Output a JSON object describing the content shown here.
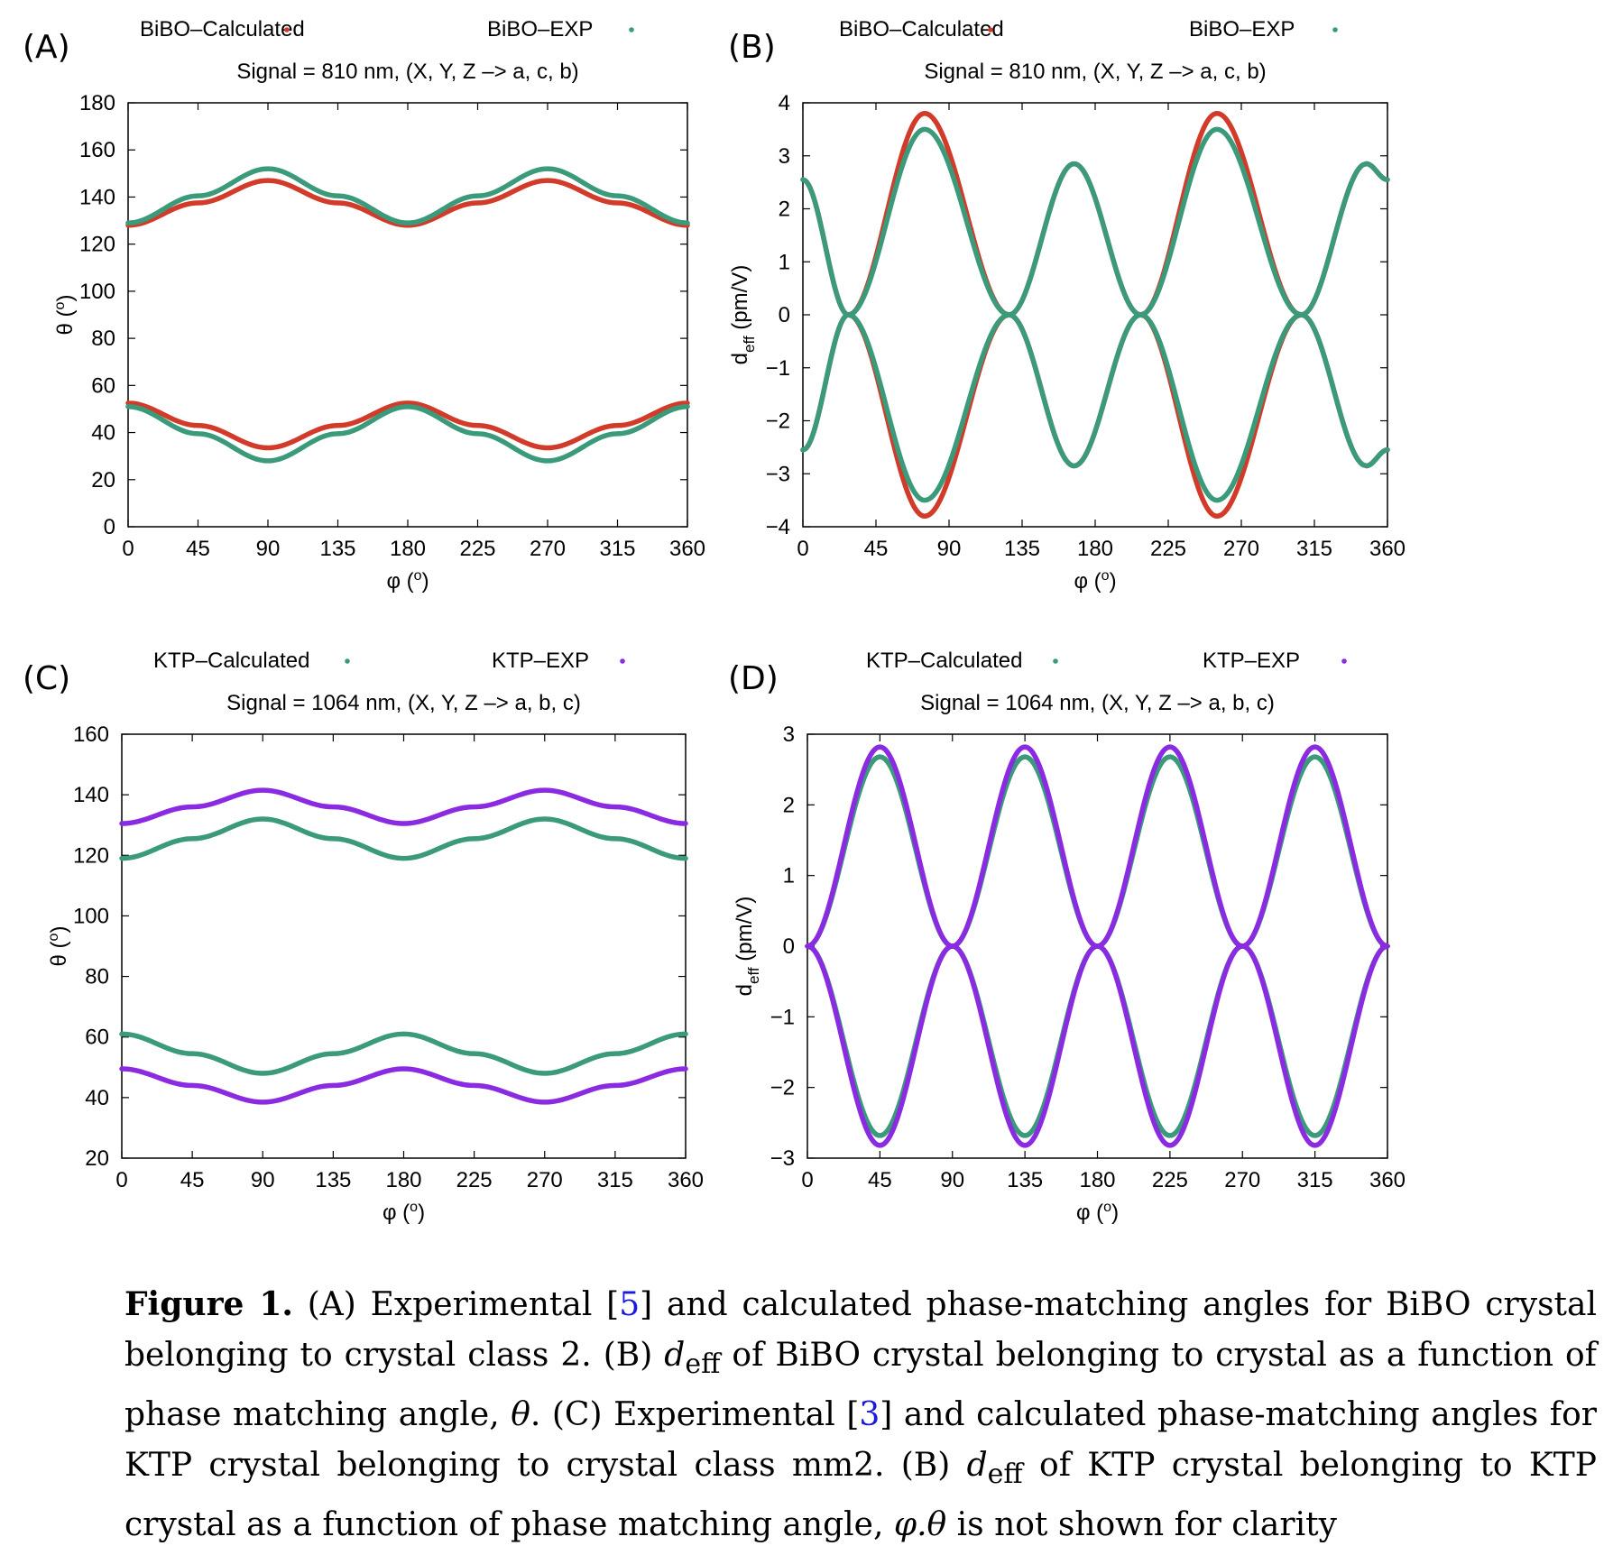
{
  "colors": {
    "bibo_calc": "#d23a2a",
    "bibo_exp": "#3a9a7a",
    "ktp_calc": "#3a9a7a",
    "ktp_exp": "#8a2be2"
  },
  "panels": {
    "a": {
      "letter": "(A)"
    },
    "b": {
      "letter": "(B)"
    },
    "c": {
      "letter": "(C)"
    },
    "d": {
      "letter": "(D)"
    }
  },
  "caption": {
    "fig_label": "Figure 1.",
    "s1": " (A) Experimental [",
    "ref1": "5",
    "s2": "] and calculated phase-matching angles for BiBO crystal belonging to crystal class 2. (B) ",
    "deff1": "d",
    "eff1": "eff",
    "s3": " of BiBO crystal belonging to crystal as a function of phase matching angle, ",
    "theta1": "θ",
    "s4": ". (C) Experimental [",
    "ref2": "3",
    "s5": "] and calculated phase-matching angles for KTP crystal belonging to crystal class mm2. (B) ",
    "deff2": "d",
    "eff2": "eff",
    "s6": " of KTP crystal belonging to KTP crystal as a function of phase matching angle, ",
    "phitheta": "φ.θ",
    "s7": " is not shown for clarity"
  },
  "chart_data": [
    {
      "id": "A",
      "type": "line",
      "title": "Signal = 810 nm, (X, Y, Z –> a, c, b)",
      "xlabel": "φ (o)",
      "ylabel": "θ (o)",
      "xlim": [
        0,
        360
      ],
      "ylim": [
        0,
        180
      ],
      "xticks": [
        0,
        45,
        90,
        135,
        180,
        225,
        270,
        315,
        360
      ],
      "yticks": [
        0,
        20,
        40,
        60,
        80,
        100,
        120,
        140,
        160,
        180
      ],
      "legend_position": "top",
      "series": [
        {
          "name": "BiBO–Calculated",
          "color_key": "bibo_calc",
          "x": [
            0,
            45,
            90,
            135,
            180,
            225,
            270,
            315,
            360
          ],
          "y": [
            128,
            137.5,
            147,
            137.5,
            128,
            137.5,
            147,
            137.5,
            128
          ]
        },
        {
          "name": "BiBO–Calculated",
          "color_key": "bibo_calc",
          "legend": false,
          "x": [
            0,
            45,
            90,
            135,
            180,
            225,
            270,
            315,
            360
          ],
          "y": [
            52.5,
            43,
            33.5,
            43,
            52.5,
            43,
            33.5,
            43,
            52.5
          ]
        },
        {
          "name": "BiBO–EXP",
          "color_key": "bibo_exp",
          "x": [
            0,
            45,
            90,
            135,
            180,
            225,
            270,
            315,
            360
          ],
          "y": [
            129,
            140.5,
            152,
            140.5,
            129,
            140.5,
            152,
            140.5,
            129
          ]
        },
        {
          "name": "BiBO–EXP",
          "color_key": "bibo_exp",
          "legend": false,
          "x": [
            0,
            45,
            90,
            135,
            180,
            225,
            270,
            315,
            360
          ],
          "y": [
            51,
            39.5,
            28,
            39.5,
            51,
            39.5,
            28,
            39.5,
            51
          ]
        }
      ]
    },
    {
      "id": "B",
      "type": "line",
      "title": "Signal = 810 nm, (X, Y, Z –> a, c, b)",
      "xlabel": "φ (o)",
      "ylabel": "deff (pm/V)",
      "xlim": [
        0,
        360
      ],
      "ylim": [
        -4,
        4
      ],
      "xticks": [
        0,
        45,
        90,
        135,
        180,
        225,
        270,
        315,
        360
      ],
      "yticks": [
        -4,
        -3,
        -2,
        -1,
        0,
        1,
        2,
        3,
        4
      ],
      "legend_position": "top",
      "series": [
        {
          "name": "BiBO–Calculated",
          "color_key": "bibo_calc",
          "x": [
            0,
            28,
            75,
            127,
            167,
            208,
            255,
            307,
            347,
            360
          ],
          "y": [
            2.55,
            0,
            -3.8,
            0,
            2.85,
            0,
            -3.8,
            0,
            2.85,
            2.55
          ]
        },
        {
          "name": "BiBO–Calculated",
          "color_key": "bibo_calc",
          "legend": false,
          "x": [
            0,
            28,
            75,
            127,
            167,
            208,
            255,
            307,
            347,
            360
          ],
          "y": [
            -2.55,
            0,
            3.8,
            0,
            -2.85,
            0,
            3.8,
            0,
            -2.85,
            -2.55
          ]
        },
        {
          "name": "BiBO–EXP",
          "color_key": "bibo_exp",
          "x": [
            0,
            28,
            75,
            127,
            167,
            208,
            255,
            307,
            347,
            360
          ],
          "y": [
            2.55,
            0,
            -3.5,
            0,
            2.85,
            0,
            -3.5,
            0,
            2.85,
            2.55
          ]
        },
        {
          "name": "BiBO–EXP",
          "color_key": "bibo_exp",
          "legend": false,
          "x": [
            0,
            28,
            75,
            127,
            167,
            208,
            255,
            307,
            347,
            360
          ],
          "y": [
            -2.55,
            0,
            3.5,
            0,
            -2.85,
            0,
            3.5,
            0,
            -2.85,
            -2.55
          ]
        }
      ]
    },
    {
      "id": "C",
      "type": "line",
      "title": "Signal = 1064 nm, (X, Y, Z –> a, b, c)",
      "xlabel": "φ (o)",
      "ylabel": "θ (o)",
      "xlim": [
        0,
        360
      ],
      "ylim": [
        20,
        160
      ],
      "xticks": [
        0,
        45,
        90,
        135,
        180,
        225,
        270,
        315,
        360
      ],
      "yticks": [
        20,
        40,
        60,
        80,
        100,
        120,
        140,
        160
      ],
      "legend_position": "top",
      "series": [
        {
          "name": "KTP–Calculated",
          "color_key": "ktp_calc",
          "x": [
            0,
            45,
            90,
            135,
            180,
            225,
            270,
            315,
            360
          ],
          "y": [
            119,
            125.5,
            132,
            125.5,
            119,
            125.5,
            132,
            125.5,
            119
          ]
        },
        {
          "name": "KTP–Calculated",
          "color_key": "ktp_calc",
          "legend": false,
          "x": [
            0,
            45,
            90,
            135,
            180,
            225,
            270,
            315,
            360
          ],
          "y": [
            61,
            54.5,
            48,
            54.5,
            61,
            54.5,
            48,
            54.5,
            61
          ]
        },
        {
          "name": "KTP–EXP",
          "color_key": "ktp_exp",
          "x": [
            0,
            45,
            90,
            135,
            180,
            225,
            270,
            315,
            360
          ],
          "y": [
            130.5,
            136,
            141.5,
            136,
            130.5,
            136,
            141.5,
            136,
            130.5
          ]
        },
        {
          "name": "KTP–EXP",
          "color_key": "ktp_exp",
          "legend": false,
          "x": [
            0,
            45,
            90,
            135,
            180,
            225,
            270,
            315,
            360
          ],
          "y": [
            49.5,
            44,
            38.5,
            44,
            49.5,
            44,
            38.5,
            44,
            49.5
          ]
        }
      ]
    },
    {
      "id": "D",
      "type": "line",
      "title": "Signal = 1064 nm, (X, Y, Z –> a, b, c)",
      "xlabel": "φ (o)",
      "ylabel": "deff (pm/V)",
      "xlim": [
        0,
        360
      ],
      "ylim": [
        -3,
        3
      ],
      "xticks": [
        0,
        45,
        90,
        135,
        180,
        225,
        270,
        315,
        360
      ],
      "yticks": [
        -3,
        -2,
        -1,
        0,
        1,
        2,
        3
      ],
      "legend_position": "top",
      "series": [
        {
          "name": "KTP–Calculated",
          "color_key": "ktp_calc",
          "x": [
            0,
            45,
            90,
            135,
            180,
            225,
            270,
            315,
            360
          ],
          "y": [
            0,
            2.68,
            0,
            2.68,
            0,
            2.68,
            0,
            2.68,
            0
          ]
        },
        {
          "name": "KTP–Calculated",
          "color_key": "ktp_calc",
          "legend": false,
          "x": [
            0,
            45,
            90,
            135,
            180,
            225,
            270,
            315,
            360
          ],
          "y": [
            0,
            -2.68,
            0,
            -2.68,
            0,
            -2.68,
            0,
            -2.68,
            0
          ]
        },
        {
          "name": "KTP–EXP",
          "color_key": "ktp_exp",
          "x": [
            0,
            45,
            90,
            135,
            180,
            225,
            270,
            315,
            360
          ],
          "y": [
            0,
            2.82,
            0,
            2.82,
            0,
            2.82,
            0,
            2.82,
            0
          ]
        },
        {
          "name": "KTP–EXP",
          "color_key": "ktp_exp",
          "legend": false,
          "x": [
            0,
            45,
            90,
            135,
            180,
            225,
            270,
            315,
            360
          ],
          "y": [
            0,
            -2.82,
            0,
            -2.82,
            0,
            -2.82,
            0,
            -2.82,
            0
          ]
        }
      ]
    }
  ]
}
